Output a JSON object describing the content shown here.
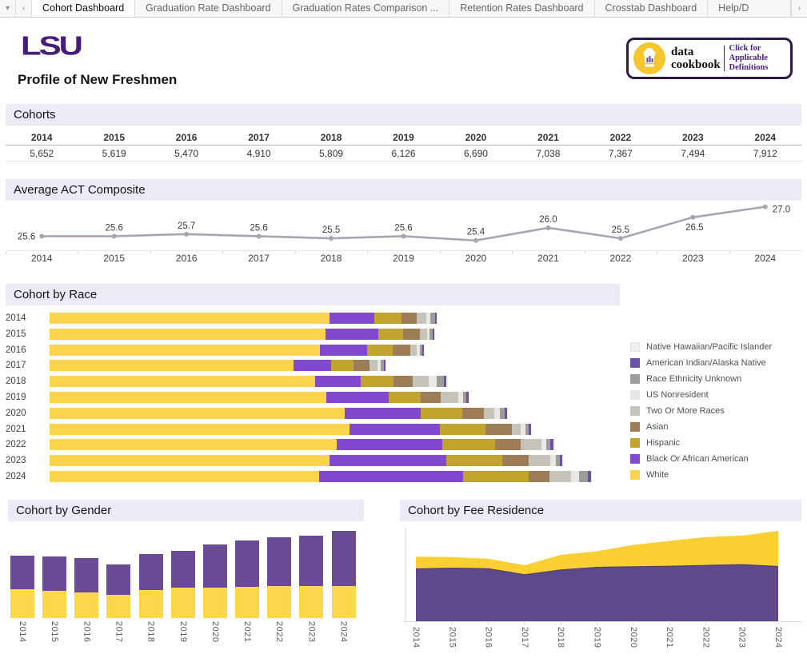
{
  "tab_bar": {
    "menu_glyph": "▾",
    "prev_glyph": "‹",
    "next_glyph": "›",
    "tabs": [
      {
        "label": "Cohort Dashboard",
        "active": true
      },
      {
        "label": "Graduation Rate Dashboard",
        "active": false
      },
      {
        "label": "Graduation Rates Comparison ...",
        "active": false
      },
      {
        "label": "Retention Rates Dashboard",
        "active": false
      },
      {
        "label": "Crosstab Dashboard",
        "active": false
      },
      {
        "label": "Help/D",
        "active": false,
        "truncated": true
      }
    ]
  },
  "header": {
    "logo_text": "LSU",
    "title": "Profile of New Freshmen",
    "badge": {
      "brand_line1": "data",
      "brand_line2": "cookbook",
      "cta_line1": "Click for Applicable",
      "cta_line2": "Definitions"
    }
  },
  "colors": {
    "lsu_purple": "#461D7C",
    "band_bg": "#ECEAF4",
    "act_line": "#ABA3B1",
    "badge_border": "#2D1B4E",
    "badge_circle": "#F6C62E",
    "gender_bottom": "#FCD64B",
    "gender_top": "#6A4B96",
    "fee_bottom": "#5E4A8B",
    "fee_bottom_edge": "#4E3D77",
    "fee_top": "#F9CF32",
    "race": {
      "White": "#FBD34D",
      "Black Or African American": "#8149CE",
      "Hispanic": "#C2A32E",
      "Asian": "#9C7D58",
      "Two Or More Races": "#C6C3BB",
      "US Nonresident": "#EAE8E5",
      "Race Ethnicity Unknown": "#9E9C99",
      "American Indian/Alaska Native": "#6A51A3",
      "Native Hawaiian/Pacific Islander": "#F1F0EE"
    }
  },
  "cohorts": {
    "title": "Cohorts",
    "years": [
      "2014",
      "2015",
      "2016",
      "2017",
      "2018",
      "2019",
      "2020",
      "2021",
      "2022",
      "2023",
      "2024"
    ],
    "values": [
      "5,652",
      "5,619",
      "5,470",
      "4,910",
      "5,809",
      "6,126",
      "6,690",
      "7,038",
      "7,367",
      "7,494",
      "7,912"
    ]
  },
  "act": {
    "title": "Average ACT Composite",
    "chart_data": {
      "type": "line",
      "categories": [
        "2014",
        "2015",
        "2016",
        "2017",
        "2018",
        "2019",
        "2020",
        "2021",
        "2022",
        "2023",
        "2024"
      ],
      "values": [
        25.6,
        25.6,
        25.7,
        25.6,
        25.5,
        25.6,
        25.4,
        26.0,
        25.5,
        26.5,
        27.0
      ],
      "title": "Average ACT Composite",
      "xlabel": "",
      "ylabel": "",
      "ylim": [
        25.2,
        27.1
      ],
      "grid": false,
      "point_labels": true
    }
  },
  "race": {
    "title": "Cohort by Race",
    "chart_data": {
      "type": "bar",
      "orientation": "horizontal_stacked",
      "categories": [
        "2014",
        "2015",
        "2016",
        "2017",
        "2018",
        "2019",
        "2020",
        "2021",
        "2022",
        "2023",
        "2024"
      ],
      "xlim": [
        0,
        8000
      ],
      "legend_position": "right",
      "legend_order": [
        "Native Hawaiian/Pacific Islander",
        "American Indian/Alaska Native",
        "Race Ethnicity Unknown",
        "US Nonresident",
        "Two Or More Races",
        "Asian",
        "Hispanic",
        "Black Or African American",
        "White"
      ],
      "series": [
        {
          "name": "White",
          "values": [
            4080,
            4020,
            3940,
            3560,
            3870,
            4040,
            4300,
            4370,
            4190,
            4080,
            3925
          ]
        },
        {
          "name": "Black Or African American",
          "values": [
            660,
            770,
            690,
            550,
            670,
            900,
            1110,
            1320,
            1535,
            1710,
            2110
          ]
        },
        {
          "name": "Hispanic",
          "values": [
            390,
            360,
            375,
            320,
            480,
            475,
            610,
            660,
            765,
            810,
            955
          ]
        },
        {
          "name": "Asian",
          "values": [
            220,
            245,
            260,
            230,
            280,
            290,
            310,
            395,
            380,
            380,
            295
          ]
        },
        {
          "name": "Two Or More Races",
          "values": [
            140,
            105,
            90,
            120,
            230,
            260,
            160,
            120,
            300,
            320,
            315
          ]
        },
        {
          "name": "US Nonresident",
          "values": [
            60,
            45,
            45,
            50,
            120,
            60,
            80,
            70,
            70,
            80,
            120
          ]
        },
        {
          "name": "Race Ethnicity Unknown",
          "values": [
            70,
            40,
            40,
            45,
            100,
            55,
            70,
            55,
            60,
            65,
            130
          ]
        },
        {
          "name": "American Indian/Alaska Native",
          "values": [
            20,
            22,
            18,
            23,
            40,
            30,
            34,
            32,
            50,
            33,
            45
          ]
        },
        {
          "name": "Native Hawaiian/Pacific Islander",
          "values": [
            12,
            12,
            12,
            12,
            19,
            16,
            16,
            16,
            17,
            16,
            17
          ]
        }
      ]
    }
  },
  "gender": {
    "title": "Cohort by Gender",
    "chart_data": {
      "type": "bar",
      "orientation": "vertical_stacked",
      "categories": [
        "2014",
        "2015",
        "2016",
        "2017",
        "2018",
        "2019",
        "2020",
        "2021",
        "2022",
        "2023",
        "2024"
      ],
      "legend": "none (colors only: yellow bottom, purple top)",
      "series": [
        {
          "name": "Yellow (bottom)",
          "values": [
            2620,
            2480,
            2340,
            2140,
            2550,
            2740,
            2800,
            2870,
            2890,
            2900,
            2950
          ]
        },
        {
          "name": "Purple (top)",
          "values": [
            3032,
            3139,
            3130,
            2770,
            3259,
            3386,
            3890,
            4168,
            4477,
            4594,
            4962
          ]
        }
      ]
    }
  },
  "fee": {
    "title": "Cohort by Fee Residence",
    "chart_data": {
      "type": "area",
      "orientation": "stacked",
      "categories": [
        "2014",
        "2015",
        "2016",
        "2017",
        "2018",
        "2019",
        "2020",
        "2021",
        "2022",
        "2023",
        "2024"
      ],
      "legend": "none (colors only: purple bottom, yellow top)",
      "series": [
        {
          "name": "Purple (bottom)",
          "values": [
            4580,
            4650,
            4600,
            4075,
            4490,
            4720,
            4770,
            4820,
            4890,
            4960,
            4800
          ]
        },
        {
          "name": "Yellow (top)",
          "values": [
            1072,
            969,
            870,
            835,
            1319,
            1406,
            1920,
            2218,
            2477,
            2534,
            3112
          ]
        }
      ]
    }
  }
}
